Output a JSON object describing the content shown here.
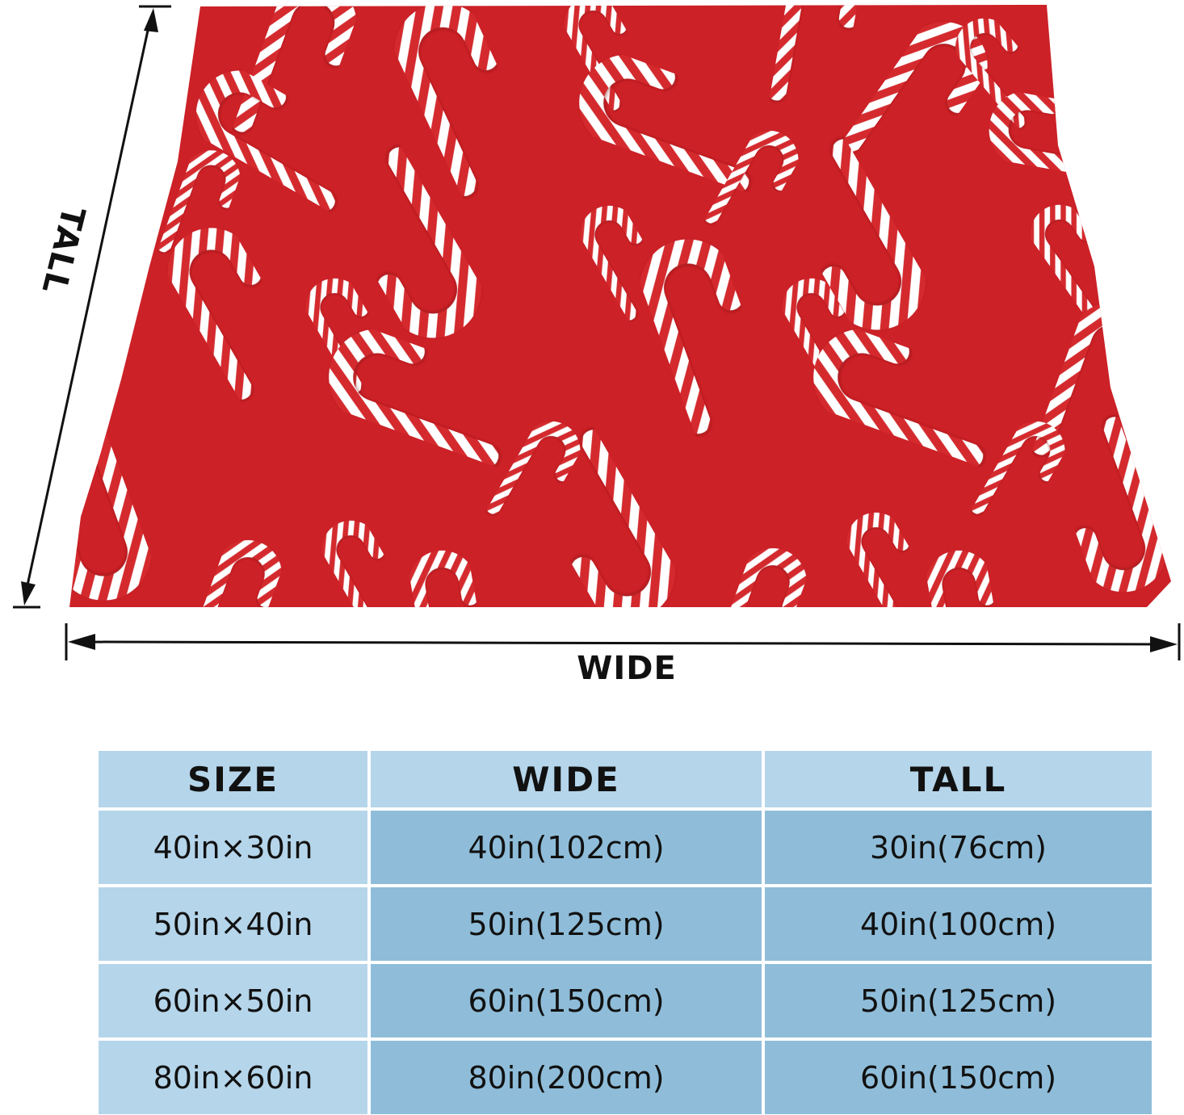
{
  "product": {
    "pattern": "candy-cane",
    "colors": {
      "blanket": "#cc2127",
      "stripe_red": "#d42a2e",
      "stripe_white": "#ffffff",
      "table_light": "#b5d5ea",
      "table_dark": "#8fbdd9",
      "arrow": "#111111"
    }
  },
  "labels": {
    "tall": "TALL",
    "wide": "WIDE"
  },
  "table": {
    "headers": [
      "SIZE",
      "WIDE",
      "TALL"
    ],
    "rows": [
      [
        "40in×30in",
        "40in(102cm)",
        "30in(76cm)"
      ],
      [
        "50in×40in",
        "50in(125cm)",
        "40in(100cm)"
      ],
      [
        "60in×50in",
        "60in(150cm)",
        "50in(125cm)"
      ],
      [
        "80in×60in",
        "80in(200cm)",
        "60in(150cm)"
      ]
    ]
  }
}
